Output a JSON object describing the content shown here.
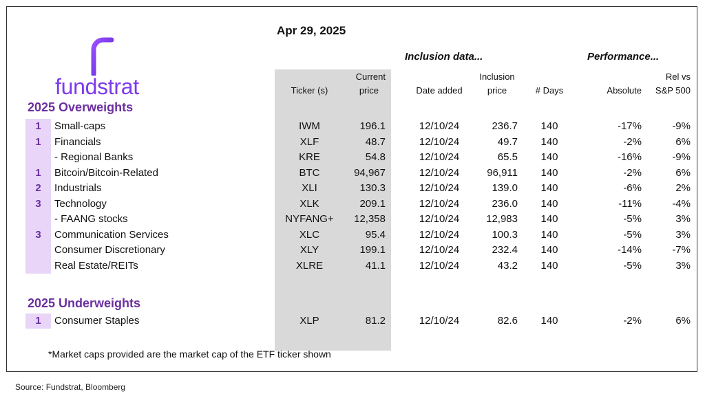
{
  "date": "Apr 29, 2025",
  "brand": {
    "name": "fundstrat",
    "logo_icon": "fundstrat-f-logo"
  },
  "group_headers": {
    "inclusion": "Inclusion data...",
    "performance": "Performance..."
  },
  "columns": {
    "ticker": "Ticker (s)",
    "current_1": "Current",
    "current_2": "price",
    "date_added": "Date added",
    "inclusion_1": "Inclusion",
    "inclusion_2": "price",
    "days": "# Days",
    "absolute": "Absolute",
    "rel_1": "Rel vs",
    "rel_2": "S&P 500"
  },
  "overweights": {
    "title": "2025 Overweights",
    "rows": [
      {
        "rank": "1",
        "name": "Small-caps",
        "ticker": "IWM",
        "price": "196.1",
        "date": "12/10/24",
        "inclusion": "236.7",
        "days": "140",
        "absolute": "-17%",
        "rel": "-9%"
      },
      {
        "rank": "1",
        "name": "Financials",
        "ticker": "XLF",
        "price": "48.7",
        "date": "12/10/24",
        "inclusion": "49.7",
        "days": "140",
        "absolute": "-2%",
        "rel": "6%"
      },
      {
        "rank": "",
        "name": "- Regional Banks",
        "ticker": "KRE",
        "price": "54.8",
        "date": "12/10/24",
        "inclusion": "65.5",
        "days": "140",
        "absolute": "-16%",
        "rel": "-9%"
      },
      {
        "rank": "1",
        "name": "Bitcoin/Bitcoin-Related",
        "ticker": "BTC",
        "price": "94,967",
        "date": "12/10/24",
        "inclusion": "96,911",
        "days": "140",
        "absolute": "-2%",
        "rel": "6%"
      },
      {
        "rank": "2",
        "name": "Industrials",
        "ticker": "XLI",
        "price": "130.3",
        "date": "12/10/24",
        "inclusion": "139.0",
        "days": "140",
        "absolute": "-6%",
        "rel": "2%"
      },
      {
        "rank": "3",
        "name": "Technology",
        "ticker": "XLK",
        "price": "209.1",
        "date": "12/10/24",
        "inclusion": "236.0",
        "days": "140",
        "absolute": "-11%",
        "rel": "-4%"
      },
      {
        "rank": "",
        "name": "- FAANG stocks",
        "ticker": "NYFANG+",
        "price": "12,358",
        "date": "12/10/24",
        "inclusion": "12,983",
        "days": "140",
        "absolute": "-5%",
        "rel": "3%"
      },
      {
        "rank": "3",
        "name": "Communication Services",
        "ticker": "XLC",
        "price": "95.4",
        "date": "12/10/24",
        "inclusion": "100.3",
        "days": "140",
        "absolute": "-5%",
        "rel": "3%"
      },
      {
        "rank": "",
        "name": "Consumer Discretionary",
        "ticker": "XLY",
        "price": "199.1",
        "date": "12/10/24",
        "inclusion": "232.4",
        "days": "140",
        "absolute": "-14%",
        "rel": "-7%"
      },
      {
        "rank": "",
        "name": "Real Estate/REITs",
        "ticker": "XLRE",
        "price": "41.1",
        "date": "12/10/24",
        "inclusion": "43.2",
        "days": "140",
        "absolute": "-5%",
        "rel": "3%"
      }
    ]
  },
  "underweights": {
    "title": "2025 Underweights",
    "rows": [
      {
        "rank": "1",
        "name": "Consumer Staples",
        "ticker": "XLP",
        "price": "81.2",
        "date": "12/10/24",
        "inclusion": "82.6",
        "days": "140",
        "absolute": "-2%",
        "rel": "6%"
      }
    ]
  },
  "footnote": "*Market caps provided are the market cap of the ETF ticker shown",
  "source": "Source: Fundstrat, Bloomberg",
  "colors": {
    "brand_purple": "#7c3aed",
    "section_purple": "#6b2fa0",
    "rank_bg": "#e8d5f8",
    "ticker_band": "#d9d9d9"
  }
}
